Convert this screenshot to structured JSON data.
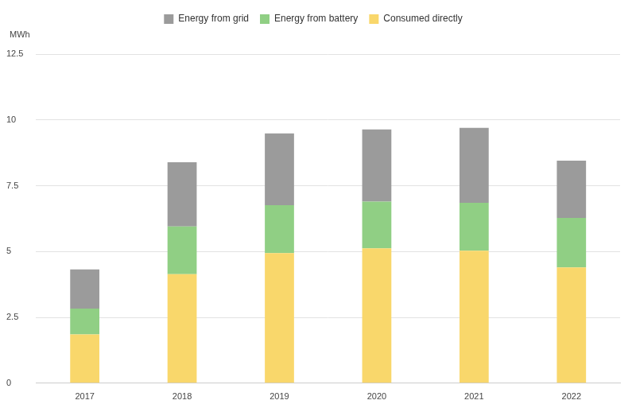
{
  "chart_data": {
    "type": "bar",
    "ylabel": "MWh",
    "categories": [
      "2017",
      "2018",
      "2019",
      "2020",
      "2021",
      "2022"
    ],
    "series": [
      {
        "name": "Consumed directly",
        "color": "#f9d76b",
        "values": [
          1.85,
          4.14,
          4.94,
          5.12,
          5.03,
          4.4
        ]
      },
      {
        "name": "Energy from battery",
        "color": "#90cf84",
        "values": [
          0.98,
          1.81,
          1.82,
          1.78,
          1.82,
          1.88
        ]
      },
      {
        "name": "Energy from grid",
        "color": "#9b9b9b",
        "values": [
          1.49,
          2.44,
          2.73,
          2.74,
          2.85,
          2.17
        ]
      }
    ],
    "ylim": [
      0,
      12.5
    ],
    "yticks": [
      0,
      2.5,
      5,
      7.5,
      10,
      12.5
    ],
    "stacked": true,
    "grid": true,
    "legend": "top"
  }
}
